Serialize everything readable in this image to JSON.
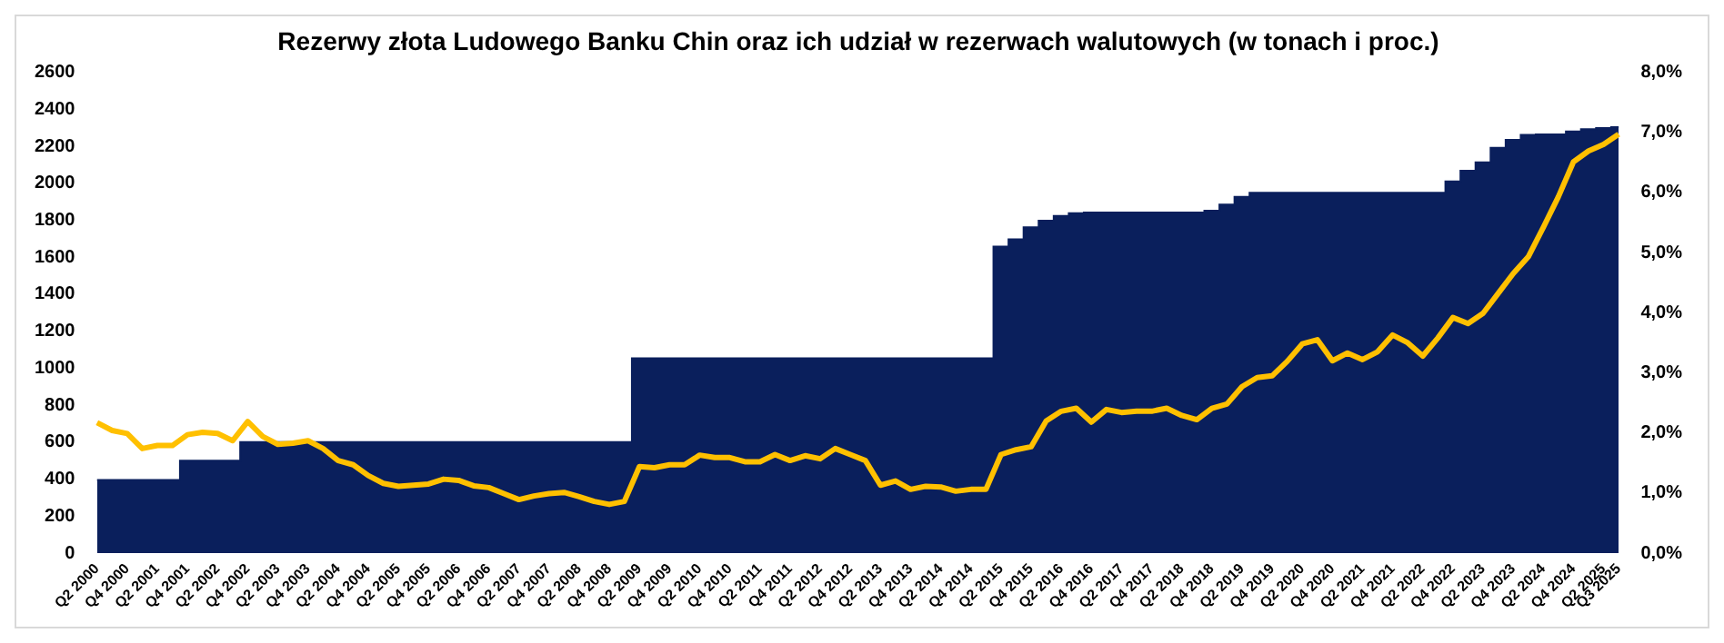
{
  "chart_data": {
    "type": "area",
    "title": "Rezerwy złota Ludowego Banku Chin oraz ich udział w rezerwach walutowych (w tonach i proc.)",
    "categories": [
      "Q2 2000",
      null,
      "Q4 2000",
      null,
      "Q2 2001",
      null,
      "Q4 2001",
      null,
      "Q2 2002",
      null,
      "Q4 2002",
      null,
      "Q2 2003",
      null,
      "Q4 2003",
      null,
      "Q2 2004",
      null,
      "Q4 2004",
      null,
      "Q2 2005",
      null,
      "Q4 2005",
      null,
      "Q2 2006",
      null,
      "Q4 2006",
      null,
      "Q2 2007",
      null,
      "Q4 2007",
      null,
      "Q2 2008",
      null,
      "Q4 2008",
      null,
      "Q2 2009",
      null,
      "Q4 2009",
      null,
      "Q2 2010",
      null,
      "Q4 2010",
      null,
      "Q2 2011",
      null,
      "Q4 2011",
      null,
      "Q2 2012",
      null,
      "Q4 2012",
      null,
      "Q2 2013",
      null,
      "Q4 2013",
      null,
      "Q2 2014",
      null,
      "Q4 2014",
      null,
      "Q2 2015",
      null,
      "Q4 2015",
      null,
      "Q2 2016",
      null,
      "Q4 2016",
      null,
      "Q2 2017",
      null,
      "Q4 2017",
      null,
      "Q2 2018",
      null,
      "Q4 2018",
      null,
      "Q2 2019",
      null,
      "Q4 2019",
      null,
      "Q2 2020",
      null,
      "Q4 2020",
      null,
      "Q2 2021",
      null,
      "Q4 2021",
      null,
      "Q2 2022",
      null,
      "Q4 2022",
      null,
      "Q2 2023",
      null,
      "Q4 2023",
      null,
      "Q2 2024",
      null,
      "Q4 2024",
      null,
      "Q2 2025",
      "Q3 2025"
    ],
    "series": [
      {
        "color": "#0a1f5c",
        "values": [
          395,
          395,
          395,
          395,
          395,
          395,
          500,
          500,
          500,
          500,
          600,
          600,
          600,
          600,
          600,
          600,
          600,
          600,
          600,
          600,
          600,
          600,
          600,
          600,
          600,
          600,
          600,
          600,
          600,
          600,
          600,
          600,
          600,
          600,
          600,
          600,
          1054,
          1054,
          1054,
          1054,
          1054,
          1054,
          1054,
          1054,
          1054,
          1054,
          1054,
          1054,
          1054,
          1054,
          1054,
          1054,
          1054,
          1054,
          1054,
          1054,
          1054,
          1054,
          1054,
          1054,
          1658,
          1697,
          1762,
          1798,
          1823,
          1838,
          1842,
          1842,
          1842,
          1842,
          1842,
          1842,
          1842,
          1842,
          1852,
          1885,
          1926,
          1948,
          1948,
          1948,
          1948,
          1948,
          1948,
          1948,
          1948,
          1948,
          1948,
          1948,
          1948,
          1948,
          2010,
          2068,
          2113,
          2192,
          2235,
          2262,
          2264,
          2264,
          2280,
          2292,
          2299,
          2303
        ]
      },
      {
        "type": "line",
        "color": "#ffc000",
        "axis": "y2",
        "values": [
          2.17,
          2.04,
          1.99,
          1.74,
          1.79,
          1.79,
          1.97,
          2.01,
          1.99,
          1.87,
          2.19,
          1.94,
          1.81,
          1.83,
          1.87,
          1.74,
          1.54,
          1.47,
          1.29,
          1.16,
          1.11,
          1.13,
          1.15,
          1.23,
          1.21,
          1.12,
          1.09,
          0.99,
          0.89,
          0.95,
          0.99,
          1.01,
          0.94,
          0.86,
          0.81,
          0.86,
          1.44,
          1.42,
          1.47,
          1.47,
          1.63,
          1.59,
          1.59,
          1.52,
          1.52,
          1.64,
          1.54,
          1.62,
          1.57,
          1.74,
          1.64,
          1.54,
          1.13,
          1.2,
          1.06,
          1.11,
          1.1,
          1.03,
          1.06,
          1.06,
          1.64,
          1.72,
          1.77,
          2.2,
          2.36,
          2.41,
          2.18,
          2.39,
          2.34,
          2.36,
          2.36,
          2.41,
          2.29,
          2.22,
          2.41,
          2.48,
          2.77,
          2.92,
          2.95,
          3.19,
          3.48,
          3.55,
          3.2,
          3.33,
          3.22,
          3.35,
          3.63,
          3.5,
          3.28,
          3.58,
          3.92,
          3.82,
          3.99,
          4.32,
          4.65,
          4.93,
          5.42,
          5.93,
          6.51,
          6.69,
          6.8,
          6.97
        ]
      }
    ],
    "ylim": [
      0,
      2600
    ],
    "yticks": [
      0,
      200,
      400,
      600,
      800,
      1000,
      1200,
      1400,
      1600,
      1800,
      2000,
      2200,
      2400,
      2600
    ],
    "y2lim": [
      0,
      8
    ],
    "y2ticks": [
      {
        "value": 0,
        "label": "0,0%"
      },
      {
        "value": 1,
        "label": "1,0%"
      },
      {
        "value": 2,
        "label": "2,0%"
      },
      {
        "value": 3,
        "label": "3,0%"
      },
      {
        "value": 4,
        "label": "4,0%"
      },
      {
        "value": 5,
        "label": "5,0%"
      },
      {
        "value": 6,
        "label": "6,0%"
      },
      {
        "value": 7,
        "label": "7,0%"
      },
      {
        "value": 8,
        "label": "8,0%"
      }
    ],
    "marker": "none"
  }
}
